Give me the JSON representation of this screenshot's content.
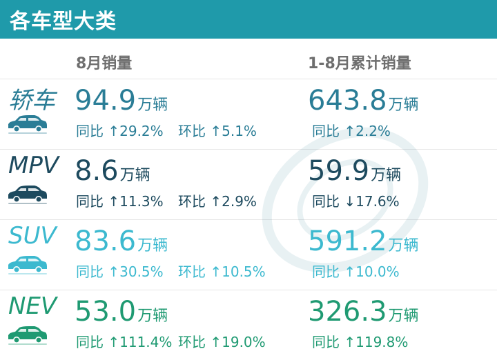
{
  "header": {
    "title": "各车型大类"
  },
  "columns": {
    "monthly": "8月销量",
    "cumulative": "1-8月累计销量"
  },
  "unit": "万辆",
  "labels": {
    "yoy": "同比",
    "mom": "环比"
  },
  "arrows": {
    "up": "↑",
    "down": "↓"
  },
  "rows": [
    {
      "category": "轿车",
      "icon": "sedan-car-icon",
      "color": "#2a7d96",
      "monthly_value": "94.9",
      "yoy": "29.2%",
      "yoy_dir": "↑",
      "mom": "5.1%",
      "mom_dir": "↑",
      "cumulative_value": "643.8",
      "cum_yoy": "2.2%",
      "cum_yoy_dir": "↑"
    },
    {
      "category": "MPV",
      "icon": "mpv-car-icon",
      "color": "#1d4a5e",
      "monthly_value": "8.6",
      "yoy": "11.3%",
      "yoy_dir": "↑",
      "mom": "2.9%",
      "mom_dir": "↑",
      "cumulative_value": "59.9",
      "cum_yoy": "17.6%",
      "cum_yoy_dir": "↓"
    },
    {
      "category": "SUV",
      "icon": "suv-car-icon",
      "color": "#3cb9cf",
      "monthly_value": "83.6",
      "yoy": "30.5%",
      "yoy_dir": "↑",
      "mom": "10.5%",
      "mom_dir": "↑",
      "cumulative_value": "591.2",
      "cum_yoy": "10.0%",
      "cum_yoy_dir": "↑"
    },
    {
      "category": "NEV",
      "icon": "nev-car-icon",
      "color": "#1f9a72",
      "monthly_value": "53.0",
      "yoy": "111.4%",
      "yoy_dir": "↑",
      "mom": "19.0%",
      "mom_dir": "↑",
      "cumulative_value": "326.3",
      "cum_yoy": "119.8%",
      "cum_yoy_dir": "↑"
    }
  ]
}
